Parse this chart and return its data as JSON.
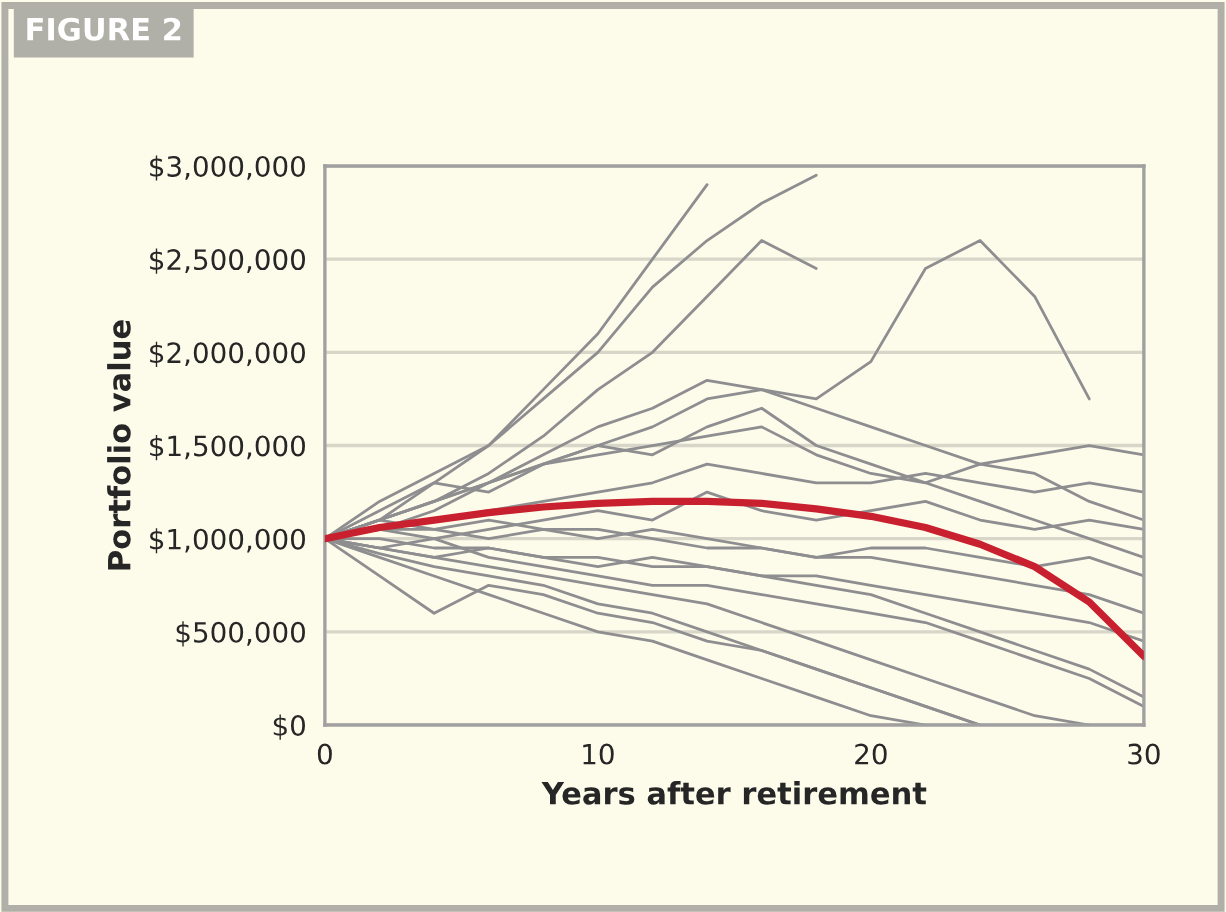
{
  "chart_data": {
    "type": "line",
    "title": "FIGURE 2",
    "xlabel": "Years after retirement",
    "ylabel": "Portfolio value",
    "x": [
      0,
      2,
      4,
      6,
      8,
      10,
      12,
      14,
      16,
      18,
      20,
      22,
      24,
      26,
      28,
      30
    ],
    "xlim": [
      0,
      30
    ],
    "xticks": [
      0,
      10,
      20,
      30
    ],
    "ylim": [
      0,
      3000000
    ],
    "yticks": [
      {
        "value": 0,
        "label": "$0"
      },
      {
        "value": 500000,
        "label": "$500,000"
      },
      {
        "value": 1000000,
        "label": "$1,000,000"
      },
      {
        "value": 1500000,
        "label": "$1,500,000"
      },
      {
        "value": 2000000,
        "label": "$2,000,000"
      },
      {
        "value": 2500000,
        "label": "$2,500,000"
      },
      {
        "value": 3000000,
        "label": "$3,000,000"
      }
    ],
    "grid": "y",
    "legend": false,
    "marker": "none",
    "line_style": "solid",
    "series": [
      {
        "color": "#8e8e90",
        "values": [
          1000000,
          1100000,
          1300000,
          1500000,
          1800000,
          2100000,
          2500000,
          2900000,
          null,
          null,
          null,
          null,
          null,
          null,
          null,
          null
        ]
      },
      {
        "color": "#8e8e90",
        "values": [
          1000000,
          1200000,
          1350000,
          1500000,
          1750000,
          2000000,
          2350000,
          2600000,
          2800000,
          2950000,
          null,
          null,
          null,
          null,
          null,
          null
        ]
      },
      {
        "color": "#8e8e90",
        "values": [
          1000000,
          1100000,
          1200000,
          1350000,
          1550000,
          1800000,
          2000000,
          2300000,
          2600000,
          2450000,
          null,
          null,
          null,
          null,
          null,
          null
        ]
      },
      {
        "color": "#8e8e90",
        "values": [
          1000000,
          1050000,
          1150000,
          1300000,
          1400000,
          1500000,
          1600000,
          1750000,
          1800000,
          1750000,
          1950000,
          2450000,
          2600000,
          2300000,
          1750000,
          null
        ]
      },
      {
        "color": "#8e8e90",
        "values": [
          1000000,
          1100000,
          1200000,
          1300000,
          1400000,
          1450000,
          1500000,
          1550000,
          1600000,
          1450000,
          1350000,
          1300000,
          1400000,
          1450000,
          1500000,
          1450000
        ]
      },
      {
        "color": "#8e8e90",
        "values": [
          1000000,
          1050000,
          1100000,
          1150000,
          1200000,
          1250000,
          1300000,
          1400000,
          1350000,
          1300000,
          1300000,
          1350000,
          1300000,
          1250000,
          1300000,
          1250000
        ]
      },
      {
        "color": "#8e8e90",
        "values": [
          1000000,
          1050000,
          1000000,
          1050000,
          1100000,
          1150000,
          1100000,
          1250000,
          1150000,
          1100000,
          1150000,
          1200000,
          1100000,
          1050000,
          1100000,
          1050000
        ]
      },
      {
        "color": "#8e8e90",
        "values": [
          1000000,
          950000,
          900000,
          950000,
          900000,
          850000,
          900000,
          850000,
          800000,
          800000,
          750000,
          700000,
          650000,
          600000,
          550000,
          450000
        ]
      },
      {
        "color": "#8e8e90",
        "values": [
          1000000,
          950000,
          900000,
          850000,
          800000,
          750000,
          700000,
          650000,
          550000,
          450000,
          350000,
          250000,
          150000,
          50000,
          0,
          null
        ]
      },
      {
        "color": "#8e8e90",
        "values": [
          1000000,
          900000,
          800000,
          700000,
          600000,
          500000,
          450000,
          350000,
          250000,
          150000,
          50000,
          0,
          null,
          null,
          null,
          null
        ]
      },
      {
        "color": "#8e8e90",
        "values": [
          1000000,
          920000,
          850000,
          800000,
          750000,
          650000,
          600000,
          500000,
          400000,
          300000,
          200000,
          100000,
          0,
          null,
          null,
          null
        ]
      },
      {
        "color": "#8e8e90",
        "values": [
          1000000,
          1000000,
          950000,
          950000,
          900000,
          900000,
          850000,
          850000,
          800000,
          750000,
          700000,
          600000,
          500000,
          400000,
          300000,
          150000
        ]
      },
      {
        "color": "#8e8e90",
        "values": [
          1000000,
          1100000,
          1050000,
          1100000,
          1050000,
          1000000,
          1050000,
          1000000,
          950000,
          900000,
          900000,
          850000,
          800000,
          750000,
          700000,
          600000
        ]
      },
      {
        "color": "#8e8e90",
        "values": [
          1000000,
          800000,
          600000,
          750000,
          700000,
          600000,
          550000,
          450000,
          400000,
          300000,
          200000,
          100000,
          0,
          null,
          null,
          null
        ]
      },
      {
        "color": "#8e8e90",
        "values": [
          1000000,
          1150000,
          1300000,
          1250000,
          1400000,
          1500000,
          1450000,
          1600000,
          1700000,
          1500000,
          1400000,
          1300000,
          1200000,
          1100000,
          1000000,
          900000
        ]
      },
      {
        "color": "#8e8e90",
        "values": [
          1000000,
          1050000,
          1050000,
          1000000,
          1050000,
          1050000,
          1000000,
          950000,
          950000,
          900000,
          950000,
          950000,
          900000,
          850000,
          900000,
          800000
        ]
      },
      {
        "color": "#8e8e90",
        "values": [
          1000000,
          950000,
          1000000,
          900000,
          850000,
          800000,
          750000,
          750000,
          700000,
          650000,
          600000,
          550000,
          450000,
          350000,
          250000,
          100000
        ]
      },
      {
        "color": "#8e8e90",
        "values": [
          1000000,
          1100000,
          1200000,
          1300000,
          1450000,
          1600000,
          1700000,
          1850000,
          1800000,
          1700000,
          1600000,
          1500000,
          1400000,
          1350000,
          1200000,
          1100000
        ]
      },
      {
        "color": "#c8202f",
        "values": [
          1000000,
          1060000,
          1100000,
          1140000,
          1170000,
          1190000,
          1200000,
          1200000,
          1190000,
          1160000,
          1120000,
          1060000,
          970000,
          850000,
          660000,
          370000
        ]
      }
    ]
  }
}
